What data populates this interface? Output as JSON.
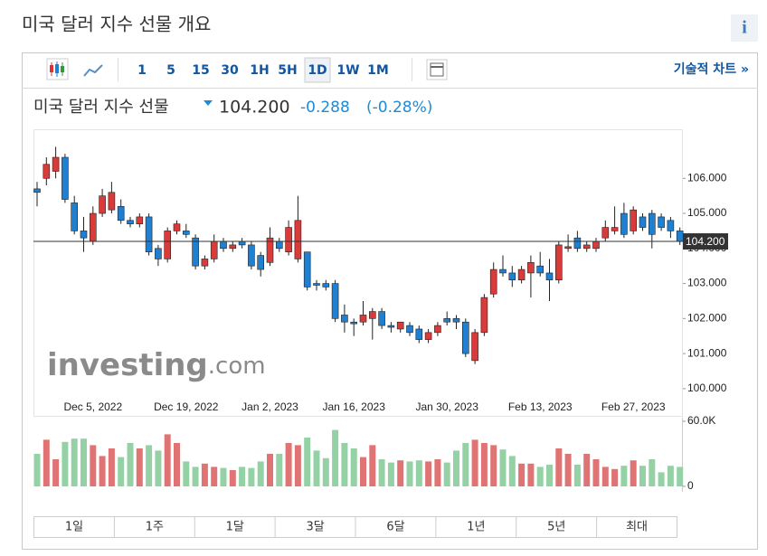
{
  "header": {
    "title": "미국 달러 지수 선물 개요",
    "info": "i"
  },
  "toolbar": {
    "intervals": [
      "1",
      "5",
      "15",
      "30",
      "1H",
      "5H",
      "1D",
      "1W",
      "1M"
    ],
    "selected": 6,
    "technical": "기술적 차트 »"
  },
  "quote": {
    "name": "미국 달러 지수 선물",
    "price": "104.200",
    "change": "-0.288",
    "change_pct": "(-0.28%)"
  },
  "logo": {
    "main": "investing",
    "suffix": ".com"
  },
  "ranges": [
    "1일",
    "1주",
    "1달",
    "3달",
    "6달",
    "1년",
    "5년",
    "최대"
  ],
  "chart_data": {
    "type": "candlestick",
    "categories": [
      null,
      null,
      null,
      null,
      null,
      null,
      "Dec 5, 2022",
      null,
      null,
      null,
      null,
      null,
      null,
      null,
      null,
      null,
      "Dec 19, 2022",
      null,
      null,
      null,
      null,
      null,
      null,
      null,
      null,
      "Jan 2, 2023",
      null,
      null,
      null,
      null,
      null,
      null,
      null,
      null,
      "Jan 16, 2023",
      null,
      null,
      null,
      null,
      null,
      null,
      null,
      null,
      null,
      "Jan 30, 2023",
      null,
      null,
      null,
      null,
      null,
      null,
      null,
      null,
      null,
      "Feb 13, 2023",
      null,
      null,
      null,
      null,
      null,
      null,
      null,
      null,
      null,
      "Feb 27, 2023",
      null,
      null,
      null,
      null,
      null
    ],
    "open": [
      105.7,
      106.0,
      106.2,
      106.6,
      105.3,
      104.5,
      104.2,
      105.0,
      105.1,
      105.2,
      104.8,
      104.7,
      104.9,
      104.0,
      103.7,
      104.5,
      104.5,
      104.3,
      103.5,
      103.7,
      104.2,
      104.0,
      104.2,
      104.1,
      103.8,
      103.6,
      104.2,
      103.9,
      103.7,
      103.9,
      103.0,
      103.0,
      103.0,
      102.1,
      101.9,
      101.9,
      102.0,
      102.2,
      101.8,
      101.7,
      101.8,
      101.7,
      101.4,
      101.6,
      102.0,
      102.0,
      101.9,
      100.8,
      101.6,
      102.7,
      103.4,
      103.3,
      103.1,
      103.3,
      103.5,
      103.3,
      103.1,
      104.0,
      104.3,
      104.0,
      104.0,
      104.3,
      104.5,
      105.0,
      104.5,
      104.9,
      105.0,
      104.9,
      104.8,
      104.5
    ],
    "high": [
      105.9,
      106.6,
      106.9,
      106.7,
      105.5,
      104.9,
      105.2,
      105.7,
      105.9,
      105.4,
      104.9,
      105.0,
      105.0,
      104.1,
      104.6,
      104.8,
      104.7,
      104.4,
      103.8,
      104.4,
      104.3,
      104.2,
      104.3,
      104.2,
      103.9,
      104.6,
      104.3,
      104.8,
      105.5,
      103.9,
      103.1,
      103.1,
      103.1,
      102.4,
      102.0,
      102.5,
      102.3,
      102.3,
      101.9,
      101.9,
      101.9,
      101.8,
      101.7,
      101.9,
      102.2,
      102.1,
      102.0,
      101.7,
      102.7,
      103.6,
      103.8,
      103.5,
      103.5,
      103.8,
      103.9,
      103.7,
      104.2,
      104.4,
      104.5,
      104.2,
      104.3,
      104.8,
      105.2,
      105.3,
      105.2,
      105.0,
      105.1,
      105.0,
      104.9,
      104.6
    ],
    "low": [
      105.2,
      105.8,
      106.0,
      105.3,
      104.4,
      103.9,
      104.1,
      104.9,
      105.0,
      104.7,
      104.6,
      104.6,
      103.8,
      103.5,
      103.6,
      104.4,
      104.3,
      103.4,
      103.4,
      103.6,
      103.9,
      103.9,
      104.0,
      103.4,
      103.2,
      103.5,
      103.9,
      103.8,
      103.6,
      102.8,
      102.8,
      102.8,
      101.9,
      101.6,
      101.5,
      101.8,
      101.4,
      101.7,
      101.6,
      101.6,
      101.5,
      101.3,
      101.3,
      101.5,
      101.8,
      101.7,
      100.9,
      100.7,
      101.5,
      102.6,
      103.2,
      102.9,
      103.0,
      102.6,
      103.2,
      102.5,
      103.0,
      103.9,
      103.9,
      103.9,
      103.9,
      104.2,
      104.4,
      104.3,
      104.4,
      104.5,
      104.0,
      104.5,
      104.3,
      104.1
    ],
    "close": [
      105.6,
      106.4,
      106.6,
      105.4,
      104.5,
      104.3,
      105.0,
      105.5,
      105.6,
      104.8,
      104.7,
      104.9,
      103.9,
      103.7,
      104.5,
      104.7,
      104.4,
      103.5,
      103.7,
      104.2,
      104.0,
      104.1,
      104.1,
      103.5,
      103.4,
      104.3,
      104.0,
      104.6,
      104.8,
      102.9,
      102.95,
      102.9,
      102.0,
      101.9,
      101.85,
      102.1,
      102.2,
      101.8,
      101.75,
      101.9,
      101.6,
      101.4,
      101.6,
      101.8,
      101.9,
      101.9,
      101.0,
      101.6,
      102.6,
      103.4,
      103.3,
      103.1,
      103.4,
      103.6,
      103.3,
      103.1,
      104.1,
      104.05,
      104.0,
      104.1,
      104.2,
      104.6,
      104.6,
      104.4,
      105.1,
      104.6,
      104.4,
      104.6,
      104.5,
      104.2
    ],
    "volume": [
      30000,
      43000,
      25000,
      41000,
      44000,
      44000,
      38000,
      28000,
      35000,
      27000,
      40000,
      35000,
      38000,
      33000,
      48000,
      40000,
      23000,
      18000,
      21000,
      18000,
      17000,
      15000,
      18000,
      17000,
      23000,
      30000,
      30000,
      40000,
      38000,
      45000,
      33000,
      26000,
      52000,
      40000,
      35000,
      27000,
      38000,
      25000,
      22000,
      24000,
      23000,
      24000,
      23000,
      25000,
      22000,
      33000,
      40000,
      43000,
      40000,
      38000,
      34000,
      28000,
      21000,
      21000,
      18000,
      20000,
      35000,
      30000,
      20000,
      30000,
      25000,
      18000,
      16000,
      19000,
      24000,
      19000,
      25000,
      13000,
      19000,
      18000
    ],
    "up_color": "#d93a3a",
    "down_color": "#1f7fd0",
    "volume_up_color": "#e07474",
    "volume_down_color": "#94d1a4",
    "ylim": [
      99.3,
      107.4
    ],
    "yticks": [
      {
        "value": 100,
        "label": "100.000"
      },
      {
        "value": 101,
        "label": "101.000"
      },
      {
        "value": 102,
        "label": "102.000"
      },
      {
        "value": 103,
        "label": "103.000"
      },
      {
        "value": 104,
        "label": "104.000"
      },
      {
        "value": 105,
        "label": "105.000"
      },
      {
        "value": 106,
        "label": "106.000"
      }
    ],
    "last_price": {
      "value": 104.2,
      "label": "104.200"
    },
    "volume_ylim": [
      0,
      60000
    ],
    "volume_ticks": [
      {
        "value": 60000,
        "label": "60.0K"
      },
      0
    ]
  }
}
